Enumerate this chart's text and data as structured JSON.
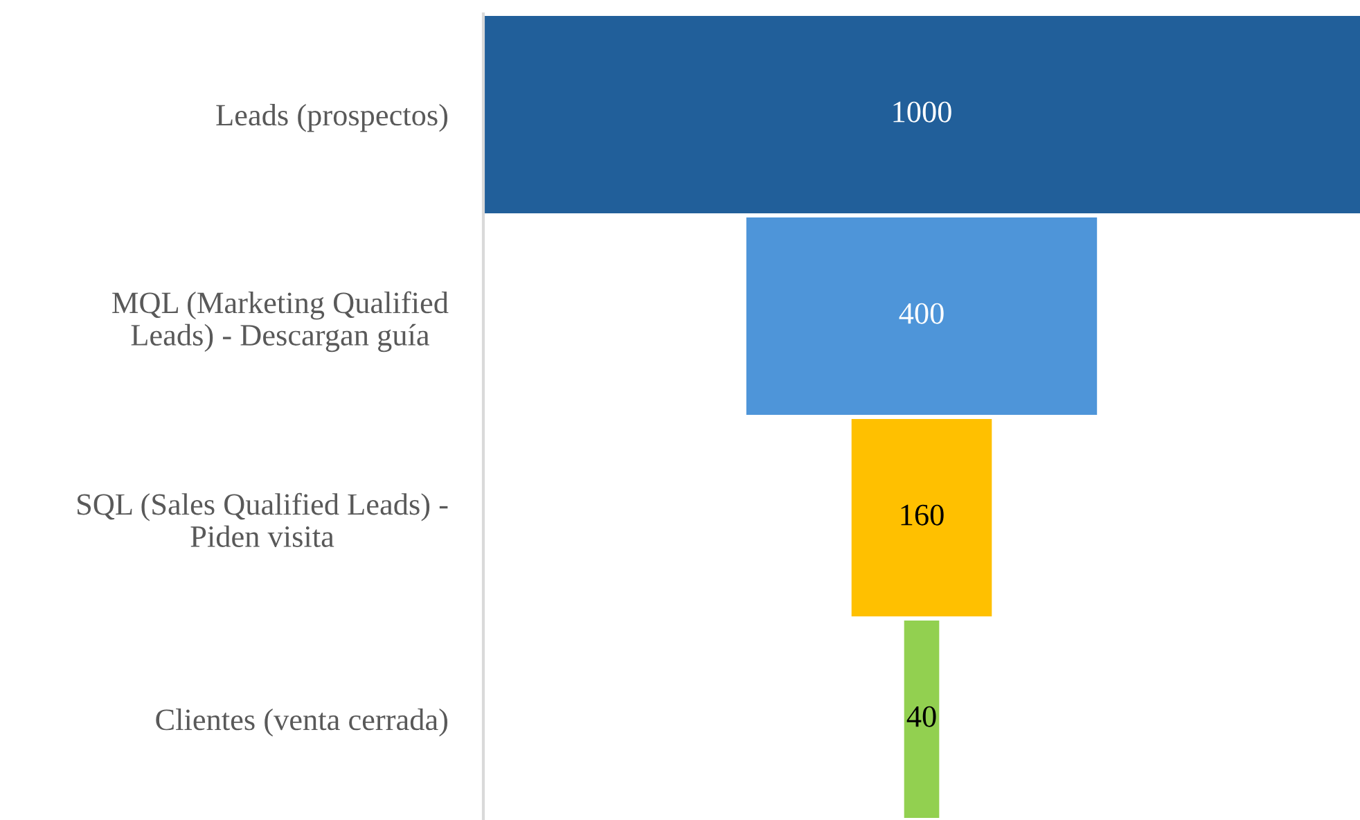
{
  "chart_data": {
    "type": "other",
    "categories": [
      "Leads (prospectos)",
      "MQL (Marketing Qualified\nLeads) - Descargan guía",
      "SQL (Sales Qualified Leads) -\nPiden visita",
      "Clientes (venta cerrada)"
    ],
    "values": [
      1000,
      400,
      160,
      40
    ],
    "colors": [
      "#215f9a",
      "#4e95d9",
      "#ffc000",
      "#92d050"
    ],
    "data_labels": true
  }
}
